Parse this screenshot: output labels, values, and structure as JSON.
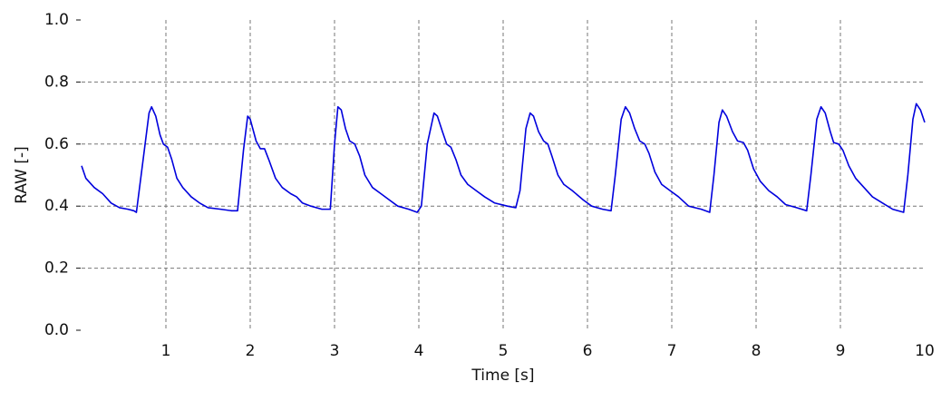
{
  "chart_data": {
    "type": "line",
    "xlabel": "Time [s]",
    "ylabel": "RAW [-]",
    "x": [
      0,
      0.05,
      0.15,
      0.25,
      0.35,
      0.45,
      0.55,
      0.62,
      0.65,
      0.73,
      0.8,
      0.83,
      0.88,
      0.93,
      0.97,
      1.02,
      1.07,
      1.13,
      1.2,
      1.3,
      1.4,
      1.5,
      1.65,
      1.78,
      1.85,
      1.92,
      1.97,
      2.0,
      2.07,
      2.12,
      2.17,
      2.22,
      2.3,
      2.38,
      2.48,
      2.55,
      2.62,
      2.72,
      2.85,
      2.92,
      2.95,
      3.0,
      3.04,
      3.08,
      3.13,
      3.18,
      3.24,
      3.3,
      3.36,
      3.45,
      3.55,
      3.65,
      3.75,
      3.88,
      3.98,
      4.03,
      4.1,
      4.18,
      4.22,
      4.28,
      4.33,
      4.38,
      4.44,
      4.5,
      4.58,
      4.68,
      4.78,
      4.9,
      5.05,
      5.15,
      5.2,
      5.27,
      5.32,
      5.36,
      5.42,
      5.48,
      5.53,
      5.58,
      5.65,
      5.72,
      5.82,
      5.95,
      6.05,
      6.18,
      6.28,
      6.33,
      6.4,
      6.45,
      6.5,
      6.56,
      6.62,
      6.68,
      6.73,
      6.8,
      6.88,
      6.98,
      7.08,
      7.2,
      7.35,
      7.45,
      7.5,
      7.56,
      7.6,
      7.65,
      7.72,
      7.78,
      7.85,
      7.9,
      7.97,
      8.05,
      8.15,
      8.25,
      8.35,
      8.48,
      8.6,
      8.65,
      8.72,
      8.77,
      8.82,
      8.88,
      8.92,
      8.98,
      9.03,
      9.1,
      9.18,
      9.28,
      9.38,
      9.5,
      9.62,
      9.75,
      9.8,
      9.86,
      9.9,
      9.95,
      10
    ],
    "values": [
      0.53,
      0.49,
      0.46,
      0.44,
      0.41,
      0.395,
      0.39,
      0.385,
      0.38,
      0.55,
      0.7,
      0.72,
      0.69,
      0.63,
      0.6,
      0.59,
      0.55,
      0.49,
      0.46,
      0.43,
      0.41,
      0.395,
      0.39,
      0.385,
      0.385,
      0.58,
      0.69,
      0.68,
      0.61,
      0.585,
      0.585,
      0.55,
      0.49,
      0.46,
      0.44,
      0.43,
      0.41,
      0.4,
      0.39,
      0.39,
      0.39,
      0.6,
      0.72,
      0.71,
      0.65,
      0.61,
      0.6,
      0.56,
      0.5,
      0.46,
      0.44,
      0.42,
      0.4,
      0.39,
      0.38,
      0.4,
      0.6,
      0.7,
      0.69,
      0.64,
      0.6,
      0.59,
      0.55,
      0.5,
      0.47,
      0.45,
      0.43,
      0.41,
      0.4,
      0.395,
      0.45,
      0.65,
      0.7,
      0.69,
      0.64,
      0.61,
      0.6,
      0.56,
      0.5,
      0.47,
      0.45,
      0.42,
      0.4,
      0.39,
      0.385,
      0.5,
      0.68,
      0.72,
      0.7,
      0.65,
      0.61,
      0.6,
      0.57,
      0.51,
      0.47,
      0.45,
      0.43,
      0.4,
      0.39,
      0.38,
      0.5,
      0.67,
      0.71,
      0.69,
      0.64,
      0.61,
      0.605,
      0.58,
      0.52,
      0.48,
      0.45,
      0.43,
      0.405,
      0.395,
      0.385,
      0.5,
      0.68,
      0.72,
      0.7,
      0.64,
      0.605,
      0.6,
      0.58,
      0.53,
      0.49,
      0.46,
      0.43,
      0.41,
      0.39,
      0.38,
      0.5,
      0.68,
      0.73,
      0.71,
      0.67
    ],
    "color": "#0000dd",
    "xlim": [
      0,
      10
    ],
    "xticks": [
      1,
      2,
      3,
      4,
      5,
      6,
      7,
      8,
      9,
      10
    ],
    "ylim": [
      0,
      1
    ],
    "yticks": [
      {
        "value": 0,
        "label": "0.0"
      },
      0.2,
      0.4,
      0.6,
      0.8,
      {
        "value": 1,
        "label": "1.0"
      }
    ],
    "grid": true
  }
}
